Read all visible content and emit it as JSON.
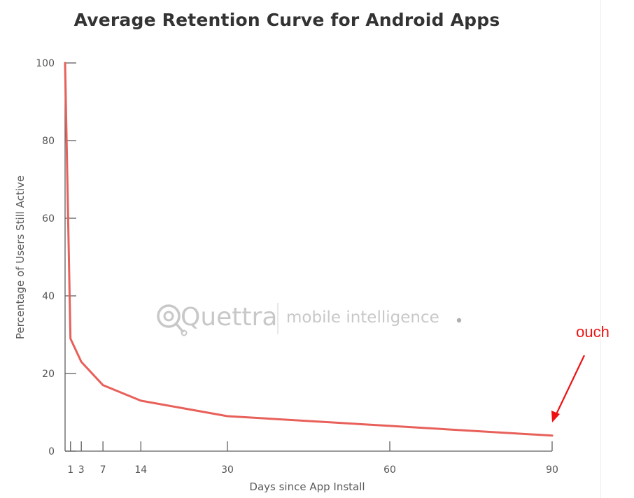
{
  "chart_data": {
    "type": "line",
    "title": "Average Retention Curve for Android Apps",
    "xlabel": "Days since App Install",
    "ylabel": "Percentage of Users Still Active",
    "x_ticks": [
      1,
      3,
      7,
      14,
      30,
      60,
      90
    ],
    "y_ticks": [
      0,
      20,
      40,
      60,
      80,
      100
    ],
    "xlim": [
      0,
      90
    ],
    "ylim": [
      0,
      100
    ],
    "grid": false,
    "series": [
      {
        "color": "#e8605a",
        "x": [
          0,
          1,
          3,
          7,
          14,
          30,
          60,
          90
        ],
        "y": [
          100,
          29,
          23,
          17,
          13,
          9,
          6.5,
          4
        ]
      }
    ],
    "annotation": {
      "text": "ouch",
      "target_x": 90,
      "target_y": 4,
      "color": "#ee1111"
    }
  },
  "watermark": {
    "brand": "Quettra",
    "tagline": "mobile intelligence"
  }
}
